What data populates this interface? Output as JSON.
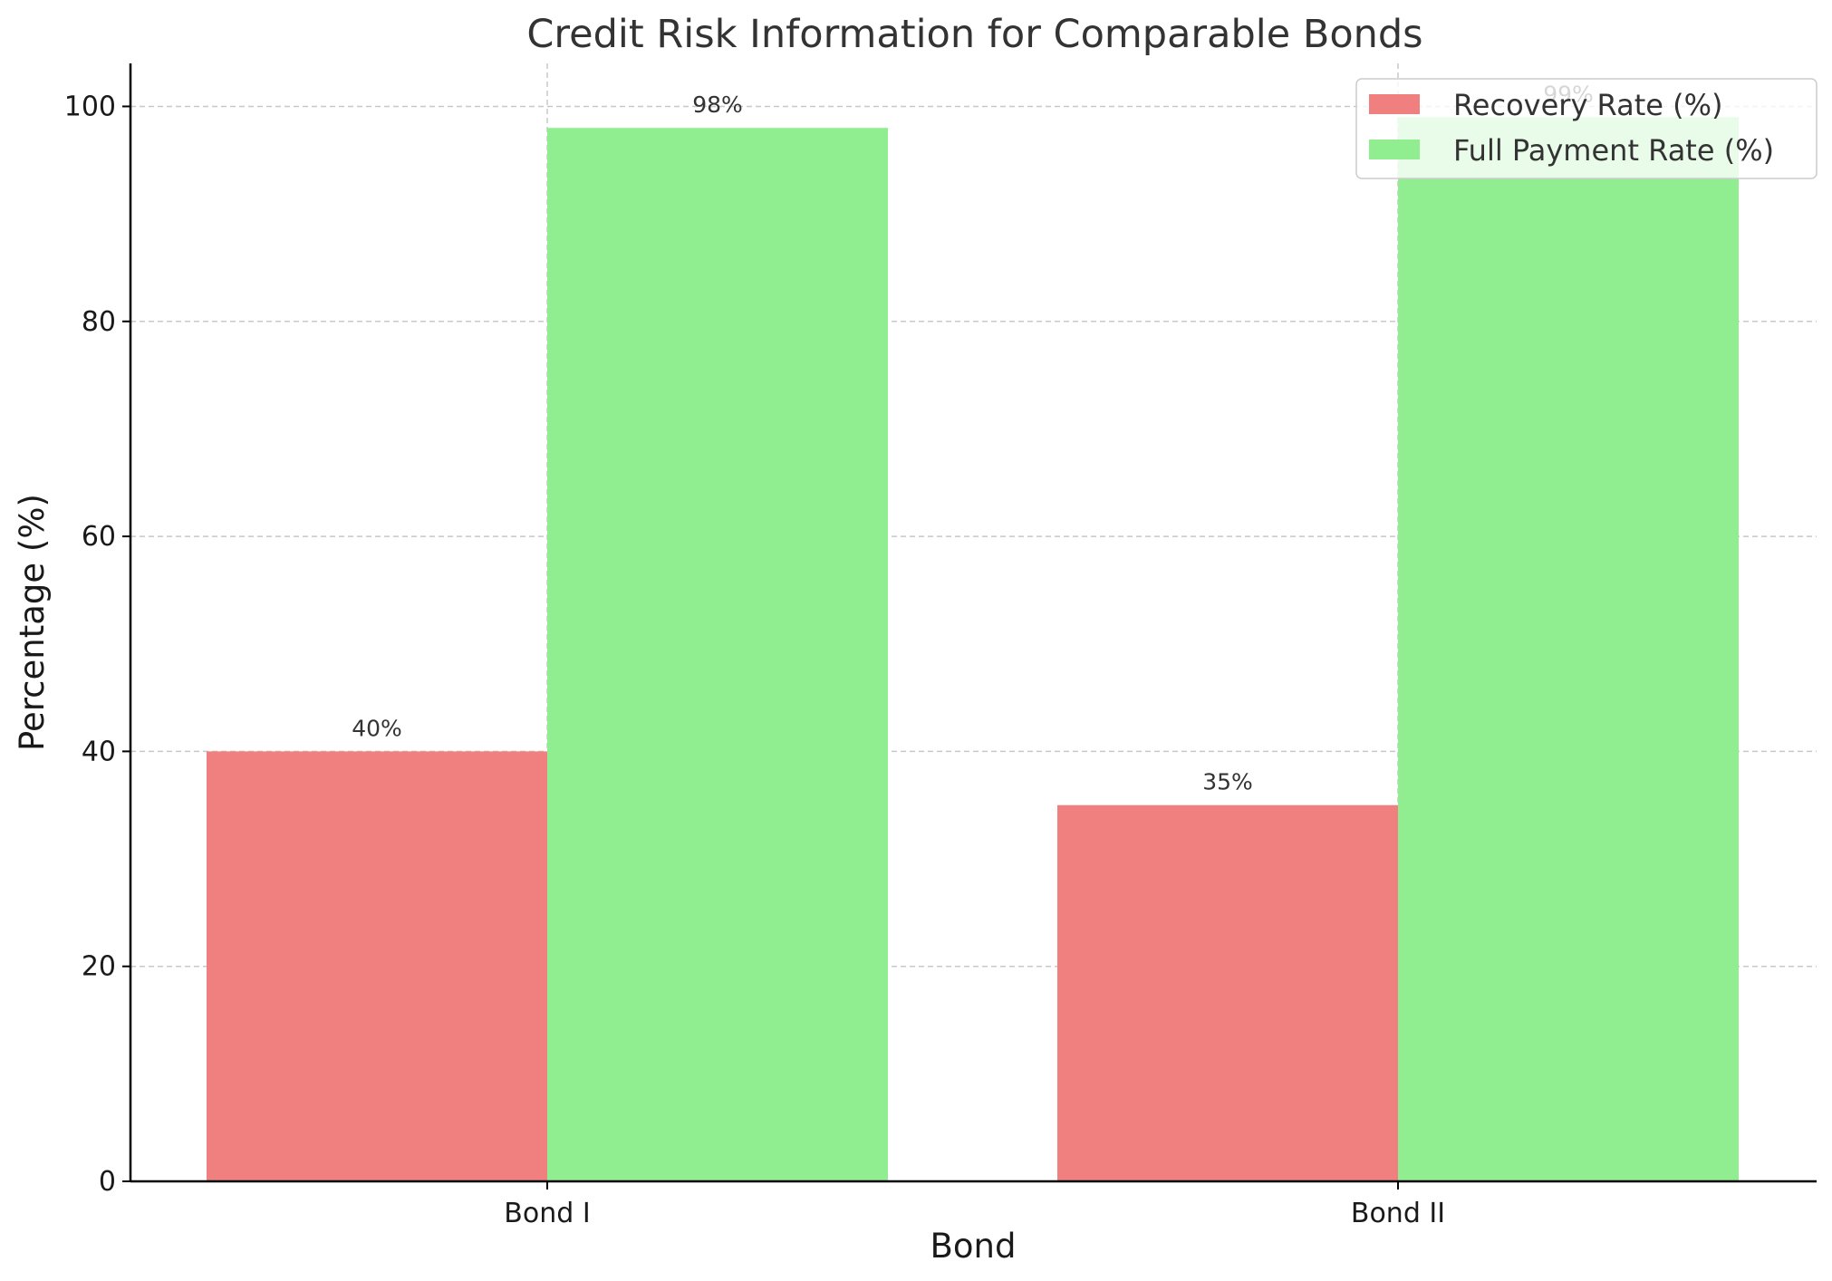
{
  "chart_data": {
    "type": "bar",
    "title": "Credit Risk Information for Comparable Bonds",
    "xlabel": "Bond",
    "ylabel": "Percentage (%)",
    "categories": [
      "Bond I",
      "Bond II"
    ],
    "series": [
      {
        "name": "Recovery Rate (%)",
        "values": [
          40,
          35
        ],
        "labels": [
          "40%",
          "35%"
        ],
        "color": "#f08080"
      },
      {
        "name": "Full Payment Rate (%)",
        "values": [
          98,
          99
        ],
        "labels": [
          "98%",
          "99%"
        ],
        "color": "#90ee90"
      }
    ],
    "ylim": [
      0,
      104
    ],
    "yticks": [
      0,
      20,
      40,
      60,
      80,
      100
    ],
    "grid": true,
    "legend": "upper right"
  }
}
